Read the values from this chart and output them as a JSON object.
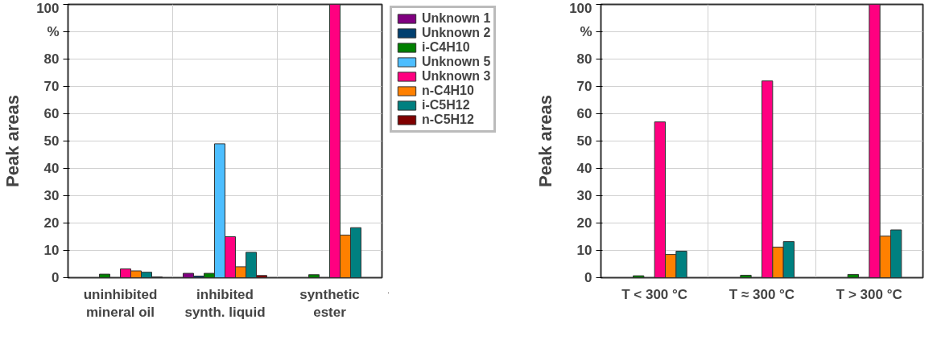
{
  "chart_data": [
    {
      "type": "bar",
      "ylabel": "Peak areas",
      "categories": [
        "uninhibited\nmineral oil",
        "inhibited\nsynth. liquid",
        "synthetic\nester"
      ],
      "ylim": [
        0,
        100
      ],
      "yticks": [
        0,
        10,
        20,
        30,
        40,
        50,
        60,
        70,
        80,
        {
          "value": 90,
          "label": "%"
        },
        100
      ],
      "grid": true,
      "legend": "right",
      "series": [
        {
          "name": "Unknown 1",
          "color": "#800080",
          "values": [
            null,
            1.6,
            null
          ]
        },
        {
          "name": "Unknown 2",
          "color": "#003f6f",
          "values": [
            null,
            0.6,
            null
          ]
        },
        {
          "name": "i-C4H10",
          "color": "#008000",
          "values": [
            1.3,
            1.6,
            1.1
          ]
        },
        {
          "name": "Unknown 5",
          "color": "#4dbeff",
          "values": [
            null,
            49,
            null
          ]
        },
        {
          "name": "Unknown 3",
          "color": "#ff0080",
          "values": [
            3.2,
            15,
            100
          ]
        },
        {
          "name": "n-C4H10",
          "color": "#ff8000",
          "values": [
            2.5,
            4,
            15.6
          ]
        },
        {
          "name": "i-C5H12",
          "color": "#008080",
          "values": [
            2,
            9.3,
            18.3
          ]
        },
        {
          "name": "n-C5H12",
          "color": "#800000",
          "values": [
            0.3,
            0.8,
            null
          ]
        }
      ]
    },
    {
      "type": "bar",
      "ylabel": "Peak areas",
      "categories": [
        "T < 300 °C",
        "T ≈ 300 °C",
        "T > 300 °C"
      ],
      "ylim": [
        0,
        100
      ],
      "yticks": [
        0,
        10,
        20,
        30,
        40,
        50,
        60,
        70,
        80,
        {
          "value": 90,
          "label": "%"
        },
        100
      ],
      "grid": true,
      "series": [
        {
          "color": "#800080",
          "values": [
            null,
            null,
            null
          ]
        },
        {
          "color": "#003f6f",
          "values": [
            null,
            null,
            null
          ]
        },
        {
          "color": "#008000",
          "values": [
            0.7,
            0.9,
            1.2
          ]
        },
        {
          "color": "#4dbeff",
          "values": [
            null,
            null,
            null
          ]
        },
        {
          "color": "#ff0080",
          "values": [
            57,
            72,
            100
          ]
        },
        {
          "color": "#ff8000",
          "values": [
            8.5,
            11.2,
            15.2
          ]
        },
        {
          "color": "#008080",
          "values": [
            9.7,
            13.2,
            17.5
          ]
        },
        {
          "color": "#800000",
          "values": [
            null,
            null,
            null
          ]
        }
      ]
    }
  ]
}
